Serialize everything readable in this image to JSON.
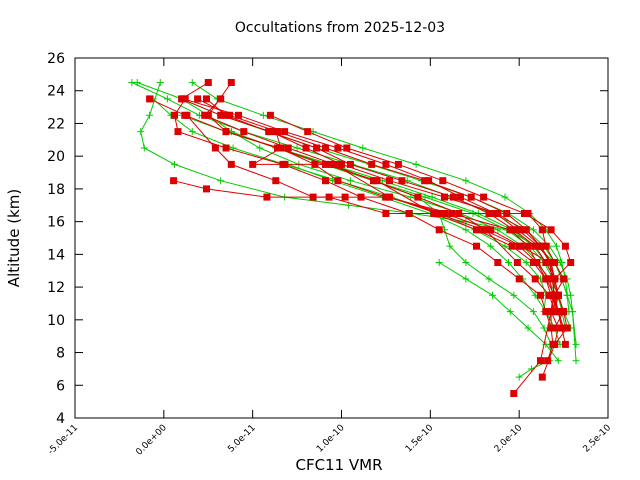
{
  "chart_data": {
    "type": "line",
    "title": "Occultations from 2025-12-03",
    "xlabel": "CFC11 VMR",
    "ylabel": "Altitude (km)",
    "xlim": [
      -5e-11,
      2.5e-10
    ],
    "ylim": [
      4,
      26
    ],
    "xticks": [
      -5e-11,
      0.0,
      5e-11,
      1e-10,
      1.5e-10,
      2e-10,
      2.5e-10
    ],
    "xtick_labels": [
      "-5.0e-11",
      "0.0e+00",
      "5.0e-11",
      "1.0e-10",
      "1.5e-10",
      "2.0e-10",
      "2.5e-10"
    ],
    "yticks": [
      4,
      6,
      8,
      10,
      12,
      14,
      16,
      18,
      20,
      22,
      24,
      26
    ],
    "ytick_labels": [
      "4",
      "6",
      "8",
      "10",
      "12",
      "14",
      "16",
      "18",
      "20",
      "22",
      "24",
      "26"
    ],
    "grid": false,
    "legend": "none",
    "colors": {
      "red_series": "#dd0000",
      "green_series": "#00cc00",
      "axes": "#000000"
    },
    "series": [
      {
        "name": "red-1",
        "color": "red",
        "marker": "square",
        "x": [
          3.8e-11,
          2.5e-11,
          3.5e-11,
          6.5e-11,
          8.5e-11,
          9.8e-11,
          1.25e-10,
          1.62e-10,
          1.95e-10,
          2.05e-10,
          2.1e-10,
          2.15e-10,
          2.18e-10,
          2.22e-10,
          2.25e-10
        ],
        "y": [
          24.5,
          22.5,
          21.5,
          20.5,
          19.5,
          18.5,
          17.5,
          16.5,
          15.5,
          14.5,
          13.5,
          12.5,
          11.5,
          10.5,
          9.5
        ]
      },
      {
        "name": "red-2",
        "color": "red",
        "marker": "square",
        "x": [
          2.5e-11,
          1e-11,
          3.2e-11,
          6e-11,
          8e-11,
          1e-10,
          1.27e-10,
          1.58e-10,
          1.88e-10,
          2.02e-10,
          2.12e-10,
          2.18e-10,
          2.2e-10,
          2.22e-10,
          2.25e-10,
          2.27e-10,
          2.2e-10
        ],
        "y": [
          24.5,
          23.5,
          22.5,
          21.5,
          20.5,
          19.5,
          18.5,
          17.5,
          16.5,
          15.5,
          14.5,
          13.5,
          12.5,
          11.5,
          10.5,
          9.5,
          8.5
        ]
      },
      {
        "name": "red-3",
        "color": "red",
        "marker": "square",
        "x": [
          -8e-12,
          1.2e-11,
          3.5e-11,
          6.4e-11,
          9.1e-11,
          1.2e-10,
          1.52e-10,
          1.76e-10,
          1.96e-10,
          2.08e-10,
          2.15e-10,
          2.2e-10,
          2.22e-10,
          2.24e-10,
          2.26e-10
        ],
        "y": [
          23.5,
          22.5,
          21.5,
          20.5,
          19.5,
          18.5,
          16.5,
          15.5,
          14.5,
          13.5,
          12.5,
          11.5,
          10.5,
          9.5,
          8.5
        ]
      },
      {
        "name": "red-4",
        "color": "red",
        "marker": "square",
        "x": [
          3.2e-11,
          2.3e-11,
          4.5e-11,
          7e-11,
          9.6e-11,
          1.27e-10,
          1.54e-10,
          1.8e-10,
          2e-10,
          2.1e-10,
          2.17e-10,
          2.19e-10,
          2.22e-10,
          2.24e-10
        ],
        "y": [
          23.5,
          22.5,
          21.5,
          20.5,
          19.5,
          17.5,
          16.5,
          15.5,
          14.5,
          13.5,
          12.5,
          11.5,
          10.5,
          9.5
        ]
      },
      {
        "name": "red-5",
        "color": "red",
        "marker": "square",
        "x": [
          1.2e-11,
          6e-12,
          8e-12,
          3.5e-11,
          6.7e-11,
          9.1e-11,
          1.11e-10,
          1.38e-10,
          1.55e-10,
          1.76e-10,
          1.88e-10,
          2e-10,
          2.12e-10,
          2.15e-10,
          2.18e-10,
          2.19e-10,
          2.16e-10
        ],
        "y": [
          23.5,
          22.5,
          21.5,
          20.5,
          19.5,
          18.5,
          17.5,
          16.5,
          15.5,
          14.5,
          13.5,
          12.5,
          11.5,
          10.5,
          9.5,
          8.5,
          7.5
        ]
      },
      {
        "name": "red-6",
        "color": "red",
        "marker": "square",
        "x": [
          2.4e-11,
          3.5e-11,
          5.9e-11,
          8.6e-11,
          1.05e-10,
          1.34e-10,
          1.63e-10,
          1.83e-10,
          1.97e-10,
          2.09e-10,
          2.15e-10,
          2.2e-10,
          2.22e-10,
          2.25e-10,
          2.2e-10
        ],
        "y": [
          23.5,
          22.5,
          21.5,
          20.5,
          19.5,
          18.5,
          17.5,
          16.5,
          15.5,
          14.5,
          13.5,
          12.5,
          11.5,
          10.5,
          9.5
        ]
      },
      {
        "name": "red-7",
        "color": "red",
        "marker": "square",
        "x": [
          1.9e-11,
          3.7e-11,
          6.4e-11,
          9.1e-11,
          1.17e-10,
          1.47e-10,
          1.73e-10,
          1.93e-10,
          2.04e-10,
          2.12e-10,
          2.17e-10,
          2.2e-10,
          2.22e-10,
          2.2e-10
        ],
        "y": [
          23.5,
          22.5,
          21.5,
          20.5,
          19.5,
          18.5,
          17.5,
          16.5,
          15.5,
          14.5,
          13.5,
          12.5,
          11.5,
          10.5
        ]
      },
      {
        "name": "red-8",
        "color": "red",
        "marker": "square",
        "x": [
          1.1e-11,
          4.2e-11,
          6.8e-11,
          9.8e-11,
          1.25e-10,
          1.49e-10,
          1.67e-10,
          1.87e-10,
          1.99e-10,
          2.11e-10,
          2.18e-10,
          2.18e-10,
          2.22e-10,
          2.18e-10,
          2.18e-10
        ],
        "y": [
          23.5,
          22.5,
          21.5,
          20.5,
          19.5,
          18.5,
          17.5,
          16.5,
          15.5,
          14.5,
          13.5,
          12.5,
          11.5,
          10.5,
          9.5
        ]
      },
      {
        "name": "red-9",
        "color": "red",
        "marker": "square",
        "x": [
          6.3e-11,
          6.6e-11,
          5e-11,
          6.8e-11,
          9.4e-11,
          1.18e-10,
          1.43e-10,
          1.66e-10,
          1.81e-10,
          1.99e-10,
          2.09e-10,
          2.17e-10,
          2.2e-10
        ],
        "y": [
          21.5,
          20.5,
          19.5,
          19.5,
          19.5,
          18.5,
          17.5,
          16.5,
          15.5,
          13.5,
          12.5,
          11.5,
          10.5
        ]
      },
      {
        "name": "red-10",
        "color": "red",
        "marker": "square",
        "x": [
          1.3e-11,
          2.9e-11,
          3.8e-11,
          6.3e-11,
          8.4e-11,
          1.02e-10,
          1.26e-10,
          1.58e-10,
          1.88e-10,
          2.05e-10,
          2.13e-10,
          2.15e-10,
          2.2e-10,
          2.25e-10,
          2.2e-10,
          2.2e-10
        ],
        "y": [
          22.5,
          20.5,
          19.5,
          18.5,
          17.5,
          17.5,
          17.5,
          16.5,
          16.5,
          16.5,
          15.5,
          14.5,
          13.5,
          12.5,
          11.5,
          10.5
        ]
      },
      {
        "name": "red-11",
        "color": "red",
        "marker": "square",
        "x": [
          6e-11,
          8.1e-11,
          1.03e-10,
          1.32e-10,
          1.57e-10,
          1.8e-10,
          2.03e-10,
          2.18e-10,
          2.26e-10,
          2.29e-10,
          2.2e-10,
          2.18e-10,
          2.22e-10,
          2.2e-10,
          2.13e-10
        ],
        "y": [
          22.5,
          21.5,
          20.5,
          19.5,
          18.5,
          17.5,
          16.5,
          15.5,
          14.5,
          13.5,
          12.5,
          10.5,
          9.5,
          8.5,
          6.5
        ]
      },
      {
        "name": "red-12",
        "color": "red",
        "marker": "square",
        "x": [
          5.5e-12,
          2.4e-11,
          5.8e-11,
          9.3e-11,
          1.25e-10,
          1.58e-10,
          1.84e-10,
          2.01e-10,
          2.17e-10,
          2.2e-10,
          2.12e-10,
          1.97e-10
        ],
        "y": [
          18.5,
          18.0,
          17.5,
          17.5,
          16.5,
          16.5,
          15.5,
          14.5,
          13.5,
          11.5,
          7.5,
          5.5
        ]
      }
    ],
    "series_green": [
      {
        "name": "green-1",
        "color": "green",
        "marker": "plus",
        "x": [
          -1.8e-11,
          2e-12,
          2e-11,
          4.5e-11,
          7.5e-11,
          1.06e-10,
          1.37e-10,
          1.62e-10,
          1.85e-10,
          2.04e-10,
          2.14e-10,
          2.2e-10,
          2.24e-10,
          2.27e-10,
          2.3e-10,
          2.32e-10
        ],
        "y": [
          24.5,
          23.5,
          22.5,
          21.5,
          20.5,
          19.5,
          18.5,
          17.5,
          16.5,
          15.5,
          14.5,
          13.5,
          12.5,
          11.5,
          10.5,
          8.5
        ]
      },
      {
        "name": "green-2",
        "color": "green",
        "marker": "plus",
        "x": [
          -1.5e-11,
          1e-11,
          3.2e-11,
          5.9e-11,
          8.6e-11,
          1.16e-10,
          1.45e-10,
          1.73e-10,
          1.94e-10,
          2.08e-10,
          2.17e-10,
          2.23e-10,
          2.27e-10,
          2.29e-10,
          2.3e-10,
          2.32e-10
        ],
        "y": [
          24.5,
          23.5,
          22.5,
          21.5,
          20.5,
          19.5,
          18.5,
          17.5,
          16.5,
          15.5,
          14.5,
          13.5,
          12.5,
          11.5,
          10.5,
          7.5
        ]
      },
      {
        "name": "green-3",
        "color": "green",
        "marker": "plus",
        "x": [
          1.6e-11,
          3e-11,
          5.6e-11,
          8.4e-11,
          1.12e-10,
          1.42e-10,
          1.7e-10,
          1.92e-10,
          2.06e-10,
          2.15e-10,
          2.21e-10,
          2.24e-10,
          2.26e-10,
          2.28e-10
        ],
        "y": [
          24.5,
          23.5,
          22.5,
          21.5,
          20.5,
          19.5,
          18.5,
          17.5,
          16.5,
          15.5,
          14.5,
          13.5,
          12.5,
          10.5
        ]
      },
      {
        "name": "green-4",
        "color": "green",
        "marker": "plus",
        "x": [
          -2e-12,
          -8e-12,
          -1.3e-11,
          -1.1e-11,
          6e-12,
          3.2e-11,
          6.8e-11,
          1.04e-10,
          1.4e-10,
          1.7e-10,
          1.93e-10,
          2.1e-10,
          2.2e-10,
          2.24e-10,
          2.27e-10
        ],
        "y": [
          24.5,
          22.5,
          21.5,
          20.5,
          19.5,
          18.5,
          17.5,
          17.0,
          16.5,
          16.0,
          15.5,
          14.5,
          13.5,
          12.5,
          11.5
        ]
      },
      {
        "name": "green-5",
        "color": "green",
        "marker": "plus",
        "x": [
          1e-11,
          2.5e-11,
          3.8e-11,
          5.4e-11,
          7.6e-11,
          1.05e-10,
          1.39e-10,
          1.67e-10,
          1.88e-10,
          2.02e-10,
          2.11e-10,
          2.16e-10,
          2.21e-10,
          2.25e-10,
          2.29e-10
        ],
        "y": [
          23.5,
          22.5,
          21.5,
          20.5,
          19.5,
          18.5,
          17.5,
          16.5,
          15.5,
          14.5,
          13.5,
          12.5,
          11.5,
          10.5,
          9.5
        ]
      },
      {
        "name": "green-6",
        "color": "green",
        "marker": "plus",
        "x": [
          3.8e-11,
          6.3e-11,
          9e-11,
          1.18e-10,
          1.47e-10,
          1.74e-10,
          1.93e-10,
          2.06e-10,
          2.14e-10,
          2.19e-10,
          2.22e-10,
          2.24e-10,
          2.26e-10
        ],
        "y": [
          21.5,
          20.5,
          19.5,
          18.5,
          17.5,
          16.5,
          15.5,
          14.5,
          13.5,
          12.5,
          11.5,
          10.5,
          9.5
        ]
      },
      {
        "name": "green-7",
        "color": "green",
        "marker": "plus",
        "x": [
          -6e-12,
          4e-12,
          1.6e-11,
          3.9e-11,
          6.8e-11,
          9.8e-11,
          1.28e-10,
          1.56e-10,
          1.75e-10,
          1.92e-10,
          2.04e-10,
          2.12e-10,
          2.15e-10,
          2.14e-10
        ],
        "y": [
          23.5,
          22.5,
          21.5,
          20.5,
          19.5,
          18.5,
          17.5,
          16.5,
          15.5,
          14.5,
          13.5,
          12.5,
          11.5,
          10.5
        ]
      },
      {
        "name": "green-8",
        "color": "green",
        "marker": "plus",
        "x": [
          9e-11,
          1.18e-10,
          1.43e-10,
          1.55e-10,
          1.58e-10,
          1.61e-10,
          1.7e-10,
          1.83e-10,
          1.97e-10,
          2.08e-10,
          2.14e-10,
          2.18e-10,
          2.17e-10,
          2.07e-10,
          2e-10
        ],
        "y": [
          19.5,
          18.5,
          17.5,
          16.5,
          15.5,
          14.5,
          13.5,
          12.5,
          11.5,
          10.5,
          9.5,
          8.5,
          7.5,
          7.0,
          6.5
        ]
      },
      {
        "name": "green-9",
        "color": "green",
        "marker": "plus",
        "x": [
          7e-11,
          9.5e-11,
          1.23e-10,
          1.5e-10,
          1.7e-10,
          1.84e-10,
          1.94e-10,
          2.02e-10,
          2.09e-10,
          2.15e-10,
          2.2e-10,
          2.23e-10
        ],
        "y": [
          19.5,
          18.5,
          17.5,
          16.5,
          15.5,
          14.5,
          13.5,
          12.5,
          11.5,
          10.5,
          9.5,
          8.5
        ]
      },
      {
        "name": "green-10",
        "color": "green",
        "marker": "plus",
        "x": [
          1e-11,
          3.5e-11,
          6.4e-11,
          9.4e-11,
          1.23e-10,
          1.51e-10,
          1.77e-10,
          1.96e-10,
          2.08e-10,
          2.15e-10,
          2.2e-10
        ],
        "y": [
          22.5,
          21.5,
          20.5,
          19.5,
          18.5,
          17.5,
          16.5,
          15.5,
          14.5,
          13.5,
          12.5
        ]
      },
      {
        "name": "green-11",
        "color": "green",
        "marker": "plus",
        "x": [
          1.55e-10,
          1.7e-10,
          1.85e-10,
          1.95e-10,
          2.05e-10,
          2.15e-10,
          2.22e-10
        ],
        "y": [
          13.5,
          12.5,
          11.5,
          10.5,
          9.5,
          8.5,
          7.5
        ]
      }
    ]
  }
}
